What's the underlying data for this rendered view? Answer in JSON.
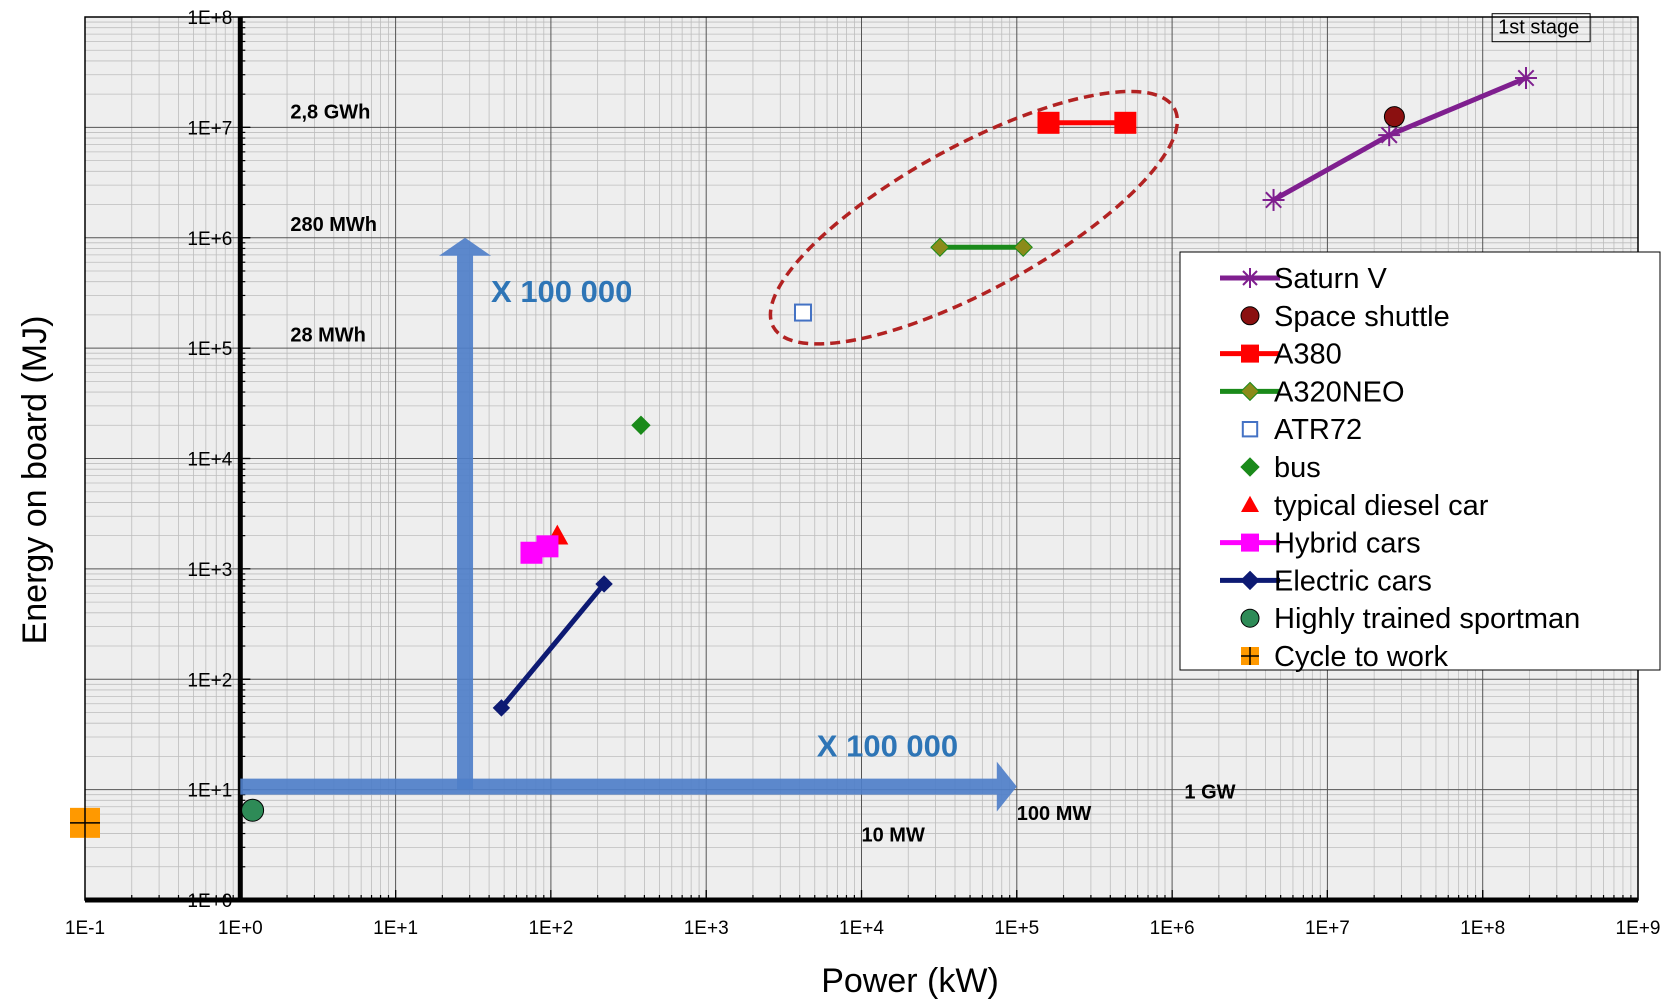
{
  "chart_data": {
    "type": "scatter",
    "xlabel": "Power (kW)",
    "ylabel": "Energy on board (MJ)",
    "x_scale": "log",
    "y_scale": "log",
    "xlim": [
      0.1,
      1000000000
    ],
    "ylim": [
      1,
      100000000
    ],
    "x_ticks": [
      {
        "value": 0.1,
        "label": "1E-1"
      },
      {
        "value": 1,
        "label": "1E+0"
      },
      {
        "value": 10,
        "label": "1E+1"
      },
      {
        "value": 100,
        "label": "1E+2"
      },
      {
        "value": 1000,
        "label": "1E+3"
      },
      {
        "value": 10000,
        "label": "1E+4"
      },
      {
        "value": 100000,
        "label": "1E+5"
      },
      {
        "value": 1000000,
        "label": "1E+6"
      },
      {
        "value": 10000000,
        "label": "1E+7"
      },
      {
        "value": 100000000,
        "label": "1E+8"
      },
      {
        "value": 1000000000,
        "label": "1E+9"
      }
    ],
    "y_ticks": [
      {
        "value": 1,
        "label": "1E+0"
      },
      {
        "value": 10,
        "label": "1E+1"
      },
      {
        "value": 100,
        "label": "1E+2"
      },
      {
        "value": 1000,
        "label": "1E+3"
      },
      {
        "value": 10000,
        "label": "1E+4"
      },
      {
        "value": 100000,
        "label": "1E+5"
      },
      {
        "value": 1000000,
        "label": "1E+6"
      },
      {
        "value": 10000000,
        "label": "1E+7"
      },
      {
        "value": 100000000,
        "label": "1E+8"
      }
    ],
    "grid": true,
    "legend_position": "right",
    "series": [
      {
        "name": "Saturn V",
        "color": "#7f1f8f",
        "marker": "star",
        "line": true,
        "points": [
          {
            "x": 4500000,
            "y": 2200000
          },
          {
            "x": 25000000,
            "y": 8500000
          },
          {
            "x": 190000000,
            "y": 28000000
          }
        ]
      },
      {
        "name": "Space shuttle",
        "color": "#8b1010",
        "marker": "circle",
        "line": false,
        "points": [
          {
            "x": 27000000,
            "y": 12500000
          }
        ]
      },
      {
        "name": "A380",
        "color": "#ff0000",
        "marker": "square",
        "line": true,
        "points": [
          {
            "x": 160000,
            "y": 11000000
          },
          {
            "x": 500000,
            "y": 11000000
          }
        ]
      },
      {
        "name": "A320NEO",
        "color": "#1a8a1a",
        "marker": "diamond",
        "marker_fill": "#8b8b1a",
        "line": true,
        "points": [
          {
            "x": 32000,
            "y": 820000
          },
          {
            "x": 110000,
            "y": 820000
          }
        ]
      },
      {
        "name": "ATR72",
        "color": "#4472c4",
        "marker": "open-square",
        "line": false,
        "points": [
          {
            "x": 4200,
            "y": 210000
          }
        ]
      },
      {
        "name": "bus",
        "color": "#1a8a1a",
        "marker": "diamond",
        "line": false,
        "points": [
          {
            "x": 380,
            "y": 20000
          }
        ]
      },
      {
        "name": "typical diesel car",
        "color": "#ff0000",
        "marker": "triangle",
        "line": false,
        "points": [
          {
            "x": 110,
            "y": 2000
          }
        ]
      },
      {
        "name": "Hybrid cars",
        "color": "#ff00ff",
        "marker": "square",
        "line": true,
        "points": [
          {
            "x": 75,
            "y": 1400
          },
          {
            "x": 95,
            "y": 1600
          }
        ]
      },
      {
        "name": "Electric cars",
        "color": "#0d1a73",
        "marker": "diamond",
        "line": true,
        "points": [
          {
            "x": 48,
            "y": 55
          },
          {
            "x": 220,
            "y": 730
          }
        ]
      },
      {
        "name": "Highly trained sportman",
        "color": "#2e8b57",
        "marker": "circle",
        "line": false,
        "points": [
          {
            "x": 1.2,
            "y": 6.5
          }
        ]
      },
      {
        "name": "Cycle to work",
        "color": "#ff9900",
        "marker": "plus-square",
        "line": false,
        "points": [
          {
            "x": 0.1,
            "y": 5
          }
        ]
      }
    ],
    "annotations": [
      {
        "text": "2,8 GWh",
        "x": 2.1,
        "y": 12000000
      },
      {
        "text": "280 MWh",
        "x": 2.1,
        "y": 1150000
      },
      {
        "text": "28 MWh",
        "x": 2.1,
        "y": 115000
      },
      {
        "text": "1 GW",
        "x": 1200000,
        "y": 8.3
      },
      {
        "text": "100 MW",
        "x": 100000,
        "y": 5.3
      },
      {
        "text": "10 MW",
        "x": 10000,
        "y": 3.4
      },
      {
        "text": "1st stage",
        "x": 115000000,
        "y": 80000000,
        "boxed": true
      }
    ],
    "arrows": [
      {
        "label": "X 100 000",
        "direction": "up",
        "from": {
          "x": 28,
          "y": 10
        },
        "to": {
          "x": 28,
          "y": 1000000
        }
      },
      {
        "label": "X 100 000",
        "direction": "right",
        "from": {
          "x": 1,
          "y": 10
        },
        "to": {
          "x": 100000,
          "y": 10
        }
      }
    ],
    "highlight_ellipse": {
      "color": "#b22222",
      "style": "dashed"
    }
  }
}
